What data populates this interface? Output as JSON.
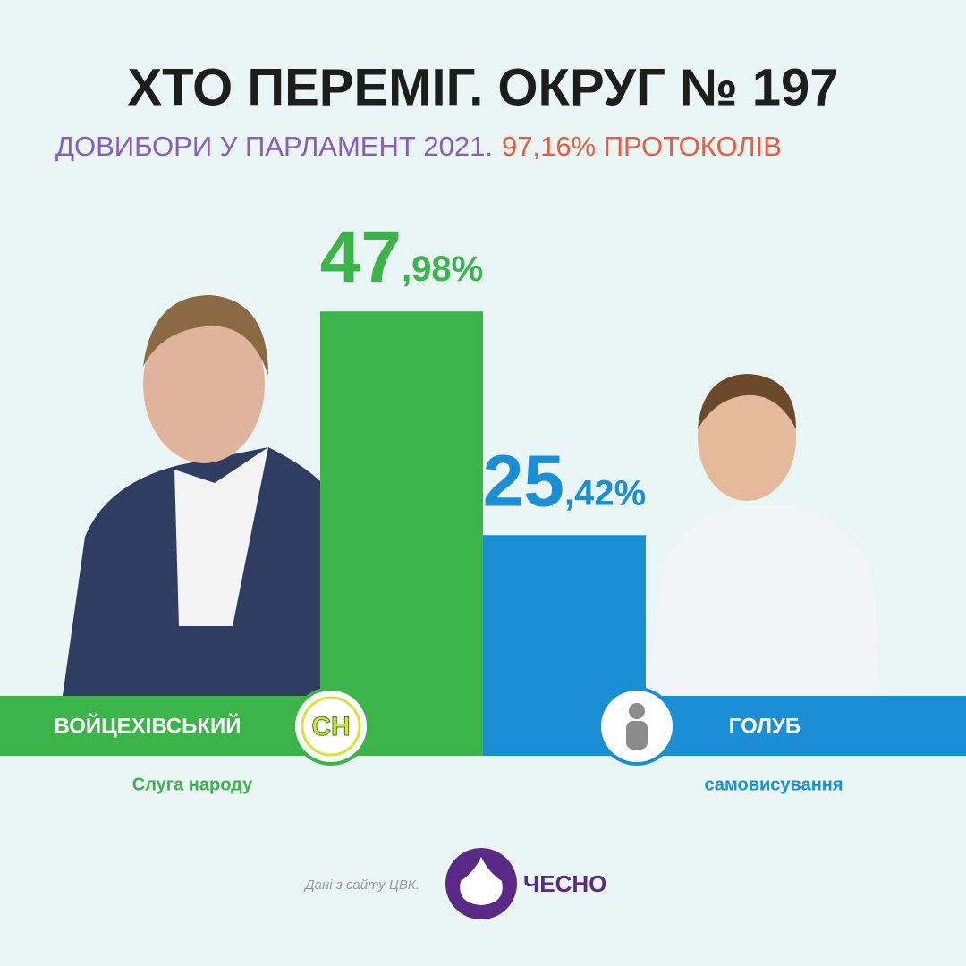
{
  "chart_data": {
    "type": "bar",
    "title": "ХТО ПЕРЕМІГ. ОКРУГ № 197",
    "subtitle": "ДОВИБОРИ У ПАРЛАМЕНТ 2021.",
    "subtitle_highlight": "97,16% ПРОТОКОЛІВ",
    "categories": [
      "ВОЙЦЕХІВСЬКИЙ",
      "ГОЛУБ"
    ],
    "parties": [
      "Слуга народу",
      "самовисування"
    ],
    "party_badge": "СН",
    "values": [
      47.98,
      25.42
    ],
    "value_labels": [
      "47,98%",
      "25,42%"
    ],
    "colors": [
      "#3bb44a",
      "#1a8fd6"
    ],
    "ylim": [
      0,
      60
    ]
  },
  "footer": {
    "source": "Дані з сайту ЦВК.",
    "logo": "ЧЕСНО"
  }
}
